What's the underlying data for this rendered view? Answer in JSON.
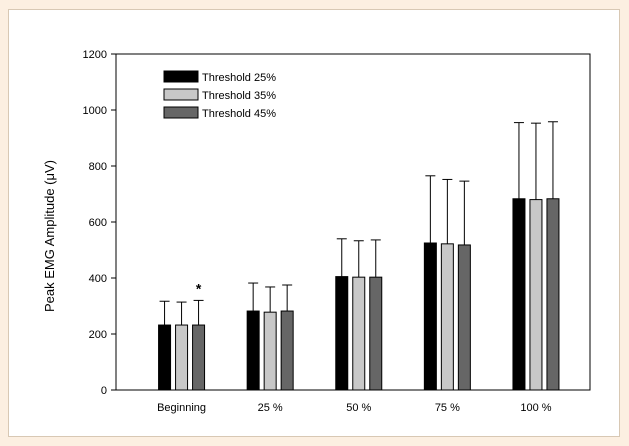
{
  "chart_data": {
    "type": "bar",
    "title": "",
    "xlabel": "",
    "ylabel": "Peak EMG Amplitude (μV)",
    "ylim": [
      0,
      1200
    ],
    "yticks": [
      0,
      200,
      400,
      600,
      800,
      1000,
      1200
    ],
    "grid": false,
    "legend_position": "top-left",
    "categories": [
      "Beginning",
      "25 %",
      "50 %",
      "75 %",
      "100 %"
    ],
    "series": [
      {
        "name": "Threshold 25%",
        "color": "#000000",
        "values": [
          232,
          282,
          405,
          525,
          683
        ],
        "errors": [
          85,
          100,
          135,
          240,
          272
        ]
      },
      {
        "name": "Threshold 35%",
        "color": "#c8c8c8",
        "values": [
          232,
          278,
          403,
          522,
          680
        ],
        "errors": [
          82,
          90,
          130,
          230,
          273
        ]
      },
      {
        "name": "Threshold 45%",
        "color": "#666666",
        "values": [
          232,
          282,
          403,
          518,
          683
        ],
        "errors": [
          88,
          93,
          133,
          228,
          275
        ]
      }
    ],
    "annotations": [
      {
        "text": "*",
        "category": "Beginning",
        "series": "Threshold 45%"
      }
    ]
  }
}
